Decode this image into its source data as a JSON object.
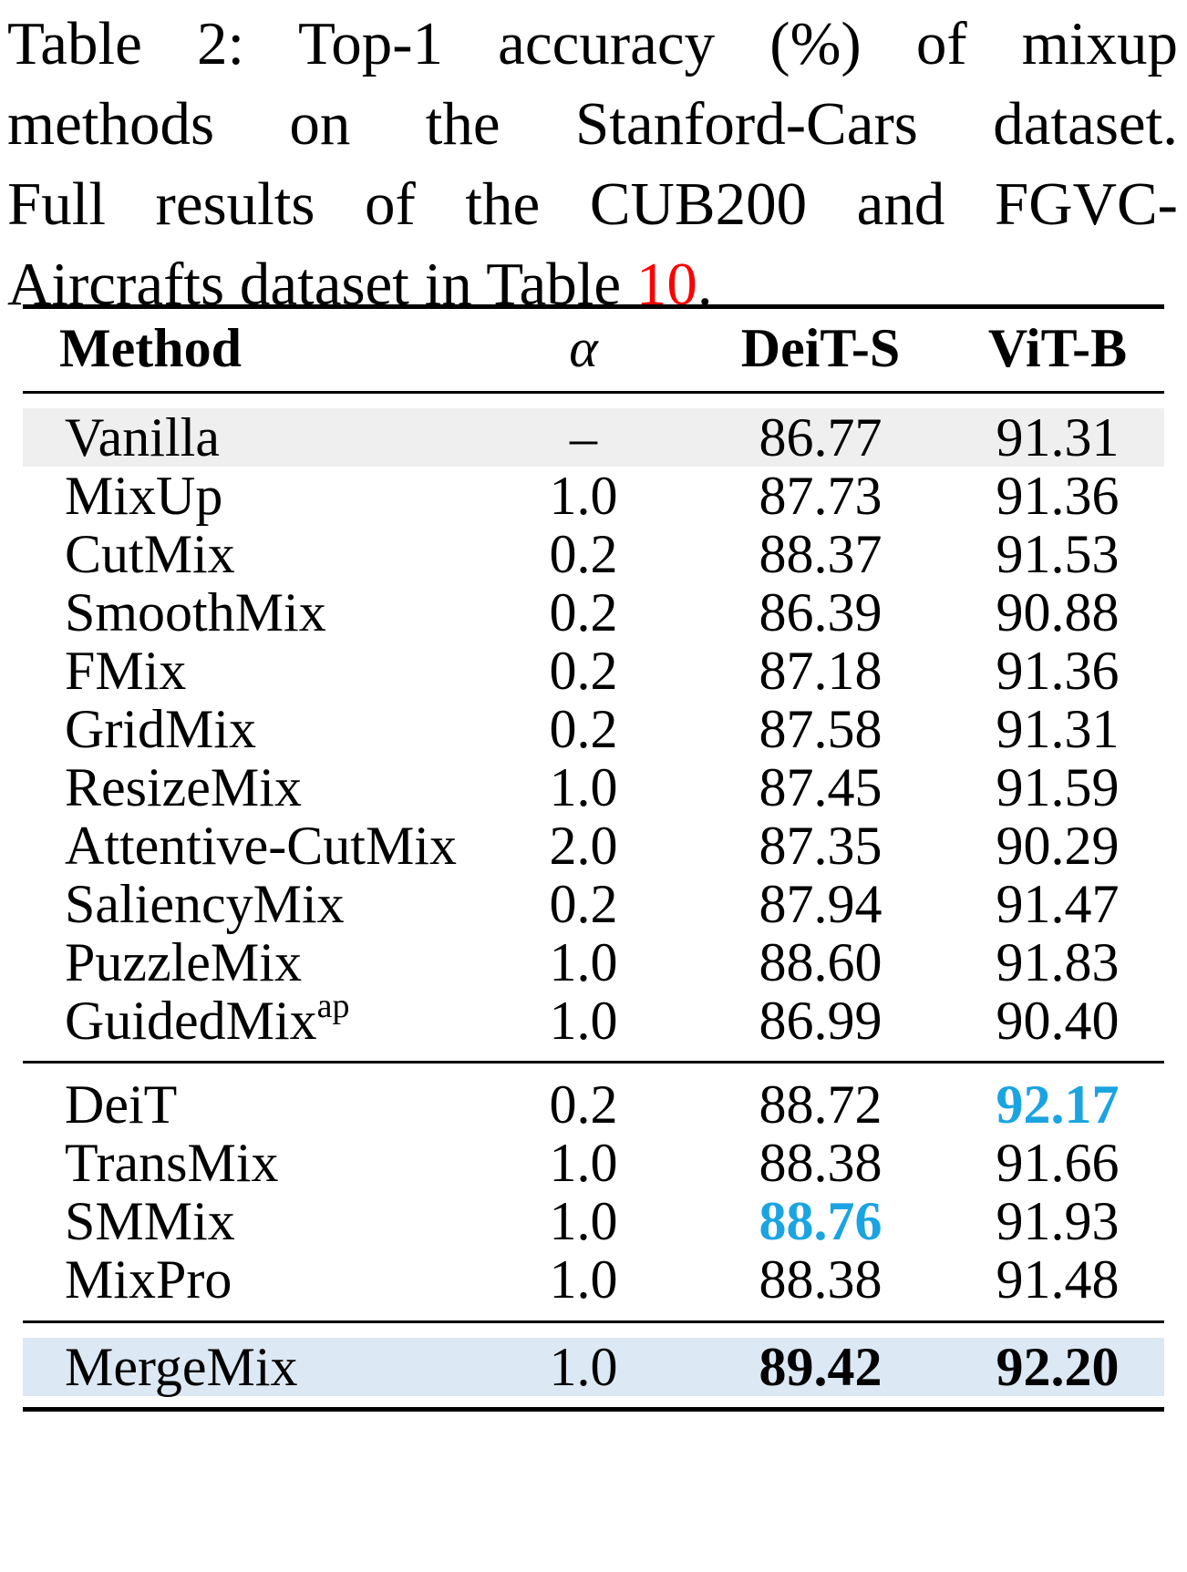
{
  "caption": {
    "line1": "Table 2: Top-1 accuracy (%) of mixup",
    "line2": "methods on the Stanford-Cars dataset.",
    "line3": "Full results of the CUB200 and FGVC-",
    "line4_text": "Aircrafts dataset in Table ",
    "line4_ref": "10",
    "line4_end": "."
  },
  "header": {
    "method": "Method",
    "alpha": "α",
    "deit_s": "DeiT-S",
    "vit_b": "ViT-B"
  },
  "group1": [
    {
      "method": "Vanilla",
      "alpha": "–",
      "deit_s": "86.77",
      "vit_b": "91.31"
    },
    {
      "method": "MixUp",
      "alpha": "1.0",
      "deit_s": "87.73",
      "vit_b": "91.36"
    },
    {
      "method": "CutMix",
      "alpha": "0.2",
      "deit_s": "88.37",
      "vit_b": "91.53"
    },
    {
      "method": "SmoothMix",
      "alpha": "0.2",
      "deit_s": "86.39",
      "vit_b": "90.88"
    },
    {
      "method": "FMix",
      "alpha": "0.2",
      "deit_s": "87.18",
      "vit_b": "91.36"
    },
    {
      "method": "GridMix",
      "alpha": "0.2",
      "deit_s": "87.58",
      "vit_b": "91.31"
    },
    {
      "method": "ResizeMix",
      "alpha": "1.0",
      "deit_s": "87.45",
      "vit_b": "91.59"
    },
    {
      "method": "Attentive-CutMix",
      "alpha": "2.0",
      "deit_s": "87.35",
      "vit_b": "90.29"
    },
    {
      "method": "SaliencyMix",
      "alpha": "0.2",
      "deit_s": "87.94",
      "vit_b": "91.47"
    },
    {
      "method": "PuzzleMix",
      "alpha": "1.0",
      "deit_s": "88.60",
      "vit_b": "91.83"
    },
    {
      "method": "GuidedMix",
      "method_sup": "ap",
      "alpha": "1.0",
      "deit_s": "86.99",
      "vit_b": "90.40"
    }
  ],
  "group2": [
    {
      "method": "DeiT",
      "alpha": "0.2",
      "deit_s": "88.72",
      "vit_b": "92.17"
    },
    {
      "method": "TransMix",
      "alpha": "1.0",
      "deit_s": "88.38",
      "vit_b": "91.66"
    },
    {
      "method": "SMMix",
      "alpha": "1.0",
      "deit_s": "88.76",
      "vit_b": "91.93"
    },
    {
      "method": "MixPro",
      "alpha": "1.0",
      "deit_s": "88.38",
      "vit_b": "91.48"
    }
  ],
  "final": {
    "method": "MergeMix",
    "alpha": "1.0",
    "deit_s": "89.42",
    "vit_b": "92.20"
  },
  "colors": {
    "caption_ref": "#ff0000",
    "second_best": "#1ba4e2",
    "vanilla_row_bg": "#efefef",
    "mergemix_row_bg": "#dce8f4"
  }
}
